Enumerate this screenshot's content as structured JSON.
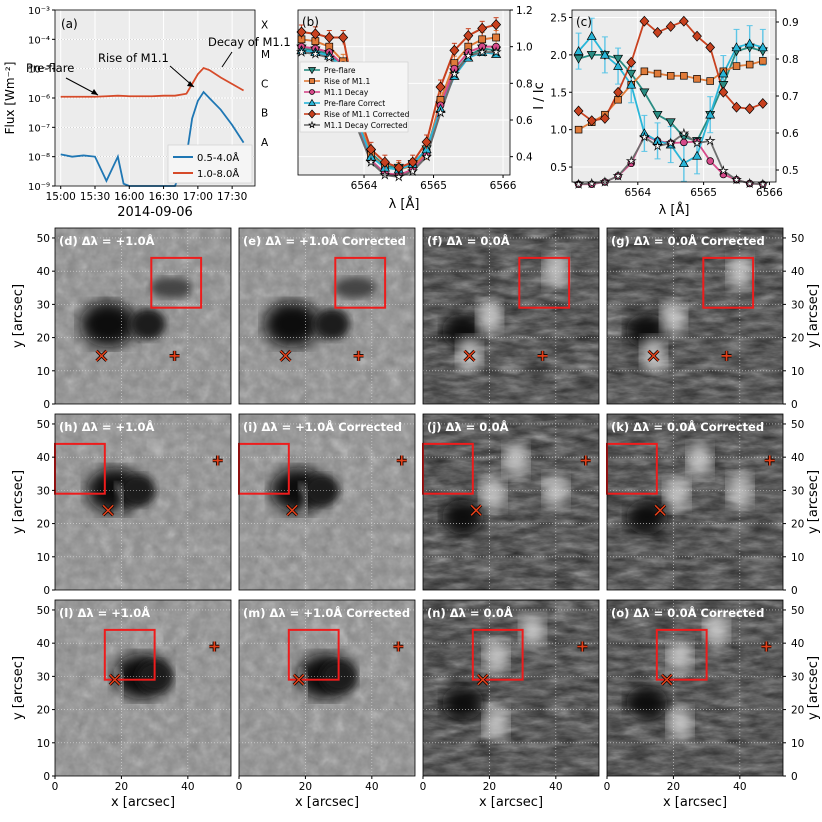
{
  "chart_data": [
    {
      "panel": "(a)",
      "type": "line",
      "xlabel": "2014-09-06",
      "ylabel": "Flux [Wm⁻²]",
      "x_ticks": [
        "15:00",
        "15:30",
        "16:00",
        "16:30",
        "17:00",
        "17:30"
      ],
      "y_ticks": [
        "10⁻⁹",
        "10⁻⁸",
        "10⁻⁷",
        "10⁻⁶",
        "10⁻⁵",
        "10⁻⁴",
        "10⁻³"
      ],
      "ylim": [
        -9,
        -3
      ],
      "yscale": "log",
      "class_labels": [
        "A",
        "B",
        "C",
        "M",
        "X"
      ],
      "annotations": [
        "Pre-flare",
        "Rise of M1.1",
        "Decay of M1.1"
      ],
      "grid": true,
      "legend_position": "lower-right",
      "series": [
        {
          "name": "0.5-4.0Å",
          "color": "#1f77b4",
          "x": [
            "15:00",
            "15:10",
            "15:20",
            "15:30",
            "15:40",
            "15:50",
            "15:55",
            "16:00",
            "16:10",
            "16:20",
            "16:30",
            "16:40",
            "16:50",
            "16:55",
            "17:00",
            "17:05",
            "17:10",
            "17:20",
            "17:30",
            "17:40"
          ],
          "y": [
            1.2e-08,
            1e-08,
            1.1e-08,
            1e-08,
            1.5e-09,
            1e-08,
            1.2e-09,
            1e-09,
            1e-09,
            1e-09,
            1e-09,
            1e-09,
            1e-08,
            2e-07,
            8e-07,
            1.6e-06,
            1e-06,
            4e-07,
            1.2e-07,
            3e-08
          ]
        },
        {
          "name": "1.0-8.0Å",
          "color": "#d64b2a",
          "x": [
            "15:00",
            "15:10",
            "15:20",
            "15:30",
            "15:40",
            "15:50",
            "16:00",
            "16:10",
            "16:20",
            "16:30",
            "16:40",
            "16:50",
            "16:55",
            "17:00",
            "17:05",
            "17:10",
            "17:20",
            "17:30",
            "17:40"
          ],
          "y": [
            1.1e-06,
            1.1e-06,
            1.1e-06,
            1.1e-06,
            1.15e-06,
            1.2e-06,
            1.15e-06,
            1.15e-06,
            1.15e-06,
            1.2e-06,
            1.2e-06,
            1.4e-06,
            3e-06,
            6.5e-06,
            1.05e-05,
            9e-06,
            5e-06,
            3e-06,
            1.8e-06
          ]
        }
      ]
    },
    {
      "panel": "(b)",
      "type": "line",
      "xlabel": "λ [Å]",
      "x_ticks": [
        "6564",
        "6565",
        "6566"
      ],
      "y_ticks": [
        "0.4",
        "0.6",
        "0.8",
        "1.0",
        "1.2"
      ],
      "ylim": [
        0.3,
        1.2
      ],
      "grid": true,
      "legend_position": "center-left",
      "x": [
        6563.1,
        6563.3,
        6563.5,
        6563.7,
        6563.9,
        6564.1,
        6564.3,
        6564.5,
        6564.7,
        6564.9,
        6565.1,
        6565.3,
        6565.5,
        6565.7,
        6565.9
      ],
      "series": [
        {
          "name": "Pre-flare",
          "color": "#2a8c82",
          "marker": "triangle-down",
          "values": [
            0.99,
            0.98,
            0.96,
            0.9,
            0.6,
            0.42,
            0.35,
            0.34,
            0.36,
            0.44,
            0.68,
            0.86,
            0.95,
            0.99,
            0.98
          ]
        },
        {
          "name": "Rise of M1.1",
          "color": "#e07b39",
          "marker": "square",
          "values": [
            1.04,
            1.03,
            1.0,
            0.92,
            0.62,
            0.41,
            0.34,
            0.33,
            0.35,
            0.42,
            0.71,
            0.91,
            1.0,
            1.04,
            1.05
          ]
        },
        {
          "name": "M1.1 Decay",
          "color": "#d64a8a",
          "marker": "circle",
          "values": [
            1.0,
            0.99,
            0.97,
            0.9,
            0.58,
            0.38,
            0.31,
            0.3,
            0.33,
            0.41,
            0.68,
            0.88,
            0.97,
            1.0,
            1.0
          ]
        },
        {
          "name": "Pre-flare Correct",
          "color": "#29b6d8",
          "marker": "triangle-up",
          "values": [
            0.98,
            0.97,
            0.95,
            0.88,
            0.6,
            0.4,
            0.34,
            0.33,
            0.36,
            0.44,
            0.66,
            0.84,
            0.94,
            0.97,
            0.96
          ]
        },
        {
          "name": "Rise of M1.1 Corrected",
          "color": "#c8411f",
          "marker": "diamond",
          "values": [
            1.08,
            1.07,
            1.05,
            1.05,
            0.66,
            0.44,
            0.37,
            0.34,
            0.37,
            0.48,
            0.78,
            0.98,
            1.06,
            1.1,
            1.12
          ]
        },
        {
          "name": "M1.1 Decay Corrected",
          "color": "#6e6e6e",
          "marker": "star",
          "values": [
            0.97,
            0.96,
            0.94,
            0.86,
            0.56,
            0.37,
            0.3,
            0.29,
            0.32,
            0.4,
            0.64,
            0.85,
            0.95,
            0.97,
            0.97
          ]
        }
      ]
    },
    {
      "panel": "(c)",
      "type": "line",
      "xlabel": "λ [Å]",
      "ylabel": "I / Iᴄ",
      "x_ticks": [
        "6564",
        "6565",
        "6566"
      ],
      "y_left_ticks": [
        "0.5",
        "1.0",
        "1.5",
        "2.0",
        "2.5"
      ],
      "y_right_ticks": [
        "0.5",
        "0.6",
        "0.7",
        "0.8",
        "0.9"
      ],
      "ylim": [
        0.3,
        2.6
      ],
      "grid": true,
      "x": [
        6563.1,
        6563.3,
        6563.5,
        6563.7,
        6563.9,
        6564.1,
        6564.3,
        6564.5,
        6564.7,
        6564.9,
        6565.1,
        6565.3,
        6565.5,
        6565.7,
        6565.9
      ],
      "series": [
        {
          "name": "Pre-flare",
          "color": "#2a8c82",
          "values": [
            1.95,
            2.0,
            2.0,
            1.95,
            1.75,
            1.5,
            1.2,
            1.1,
            0.9,
            0.85,
            1.2,
            1.6,
            2.05,
            2.1,
            2.05
          ]
        },
        {
          "name": "Rise of M1.1",
          "color": "#e07b39",
          "values": [
            1.0,
            1.1,
            1.2,
            1.4,
            1.6,
            1.78,
            1.75,
            1.72,
            1.72,
            1.68,
            1.65,
            1.78,
            1.85,
            1.87,
            1.92
          ]
        },
        {
          "name": "M1.1 Decay",
          "color": "#d64a8a",
          "values": [
            0.27,
            0.27,
            0.3,
            0.38,
            0.55,
            0.92,
            0.85,
            0.82,
            0.83,
            0.84,
            0.58,
            0.4,
            0.33,
            0.28,
            0.27
          ]
        },
        {
          "name": "Pre-flare Correct",
          "color": "#29b6d8",
          "values": [
            2.05,
            2.25,
            2.0,
            1.85,
            1.6,
            0.95,
            0.85,
            0.8,
            0.55,
            0.65,
            1.2,
            1.75,
            2.1,
            2.15,
            2.1
          ]
        },
        {
          "name": "Rise of M1.1 Corrected",
          "color": "#c8411f",
          "values": [
            1.25,
            1.12,
            1.15,
            1.5,
            1.9,
            2.45,
            2.3,
            2.38,
            2.45,
            2.25,
            2.1,
            1.5,
            1.3,
            1.28,
            1.35
          ]
        },
        {
          "name": "M1.1 Decay Corrected",
          "color": "#6e6e6e",
          "values": [
            0.27,
            0.28,
            0.3,
            0.38,
            0.58,
            0.9,
            0.78,
            0.82,
            0.95,
            0.82,
            0.85,
            0.45,
            0.33,
            0.28,
            0.27
          ]
        }
      ]
    },
    {
      "type": "heatmap",
      "panels": [
        {
          "label": "(d) Δλ = +1.0Å",
          "style": "photo"
        },
        {
          "label": "(e) Δλ = +1.0Å Corrected",
          "style": "photo"
        },
        {
          "label": "(f) Δλ = 0.0Å",
          "style": "core"
        },
        {
          "label": "(g) Δλ = 0.0Å Corrected",
          "style": "core"
        },
        {
          "label": "(h) Δλ = +1.0Å",
          "style": "photo"
        },
        {
          "label": "(i) Δλ = +1.0Å Corrected",
          "style": "photo"
        },
        {
          "label": "(j) Δλ = 0.0Å",
          "style": "core"
        },
        {
          "label": "(k) Δλ = 0.0Å Corrected",
          "style": "core"
        },
        {
          "label": "(l) Δλ = +1.0Å",
          "style": "photo"
        },
        {
          "label": "(m) Δλ = +1.0Å Corrected",
          "style": "photo"
        },
        {
          "label": "(n) Δλ = 0.0Å",
          "style": "core"
        },
        {
          "label": "(o) Δλ = 0.0Å Corrected",
          "style": "core"
        }
      ],
      "rows": [
        {
          "box": [
            29,
            44,
            29,
            44
          ],
          "x_mark": [
            14,
            14.5
          ],
          "plus_mark": [
            36,
            14.5
          ]
        },
        {
          "box": [
            -5,
            15,
            29,
            44
          ],
          "x_mark": [
            16,
            24
          ],
          "plus_mark": [
            49,
            39
          ]
        },
        {
          "box": [
            15,
            30,
            29,
            44
          ],
          "x_mark": [
            18,
            29
          ],
          "plus_mark": [
            48,
            39
          ]
        }
      ],
      "xlabel": "x [arcsec]",
      "ylabel": "y [arcsec]",
      "x_ticks": [
        "0",
        "20",
        "40"
      ],
      "y_ticks": [
        "0",
        "10",
        "20",
        "30",
        "40",
        "50"
      ],
      "xlim": [
        0,
        53
      ],
      "ylim": [
        0,
        53
      ]
    }
  ]
}
